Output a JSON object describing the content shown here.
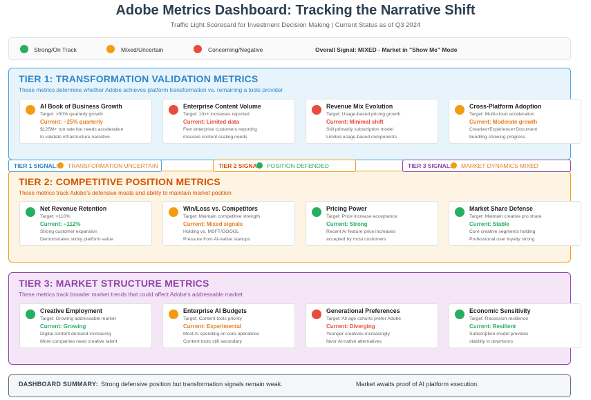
{
  "title": "Adobe Metrics Dashboard: Tracking the Narrative Shift",
  "subtitle": "Traffic Light Scorecard for Investment Decision Making | Current Status as of Q3 2024",
  "colors": {
    "green": "#27ae60",
    "amber": "#f39c12",
    "red": "#e74c3c"
  },
  "legend": {
    "green_label": "Strong/On Track",
    "amber_label": "Mixed/Uncertain",
    "red_label": "Concerning/Negative",
    "overall": "Overall Signal: MIXED - Market in \"Show Me\" Mode"
  },
  "tiers": [
    {
      "title": "TIER 1: TRANSFORMATION VALIDATION METRICS",
      "description": "These metrics determine whether Adobe achieves platform transformation vs. remaining a tools provider",
      "cards": [
        {
          "status": "amber",
          "name": "AI Book of Business Growth",
          "target": "Target: >50% quarterly growth",
          "current": "Current: ~25% quarterly",
          "note1": "$125M+ run rate but needs acceleration",
          "note2": "to validate infrastructure narrative"
        },
        {
          "status": "red",
          "name": "Enterprise Content Volume",
          "target": "Target: 10x+ increases reported",
          "current": "Current: Limited data",
          "note1": "Few enterprise customers reporting",
          "note2": "massive content scaling needs"
        },
        {
          "status": "red",
          "name": "Revenue Mix Evolution",
          "target": "Target: Usage-based pricing growth",
          "current": "Current: Minimal shift",
          "note1": "Still primarily subscription model",
          "note2": "Limited usage-based components"
        },
        {
          "status": "amber",
          "name": "Cross-Platform Adoption",
          "target": "Target: Multi-cloud acceleration",
          "current": "Current: Moderate growth",
          "note1": "Creative+Experience+Document",
          "note2": "bundling showing progress"
        }
      ]
    },
    {
      "title": "TIER 2: COMPETITIVE POSITION METRICS",
      "description": "These metrics track Adobe's defensive moats and ability to maintain market position",
      "cards": [
        {
          "status": "green",
          "name": "Net Revenue Retention",
          "target": "Target: >110%",
          "current": "Current: ~112%",
          "note1": "Strong customer expansion",
          "note2": "Demonstrates sticky platform value"
        },
        {
          "status": "amber",
          "name": "Win/Loss vs. Competitors",
          "target": "Target: Maintain competitive strength",
          "current": "Current: Mixed signals",
          "note1": "Holding vs. MSFT/GOOGL",
          "note2": "Pressure from AI-native startups"
        },
        {
          "status": "green",
          "name": "Pricing Power",
          "target": "Target: Price increase acceptance",
          "current": "Current: Strong",
          "note1": "Recent AI feature price increases",
          "note2": "accepted by most customers"
        },
        {
          "status": "green",
          "name": "Market Share Defense",
          "target": "Target: Maintain creative pro share",
          "current": "Current: Stable",
          "note1": "Core creative segments holding",
          "note2": "Professional user loyalty strong"
        }
      ]
    },
    {
      "title": "TIER 3: MARKET STRUCTURE METRICS",
      "description": "These metrics track broader market trends that could affect Adobe's addressable market",
      "cards": [
        {
          "status": "green",
          "name": "Creative Employment",
          "target": "Target: Growing addressable market",
          "current": "Current: Growing",
          "note1": "Digital content demand increasing",
          "note2": "More companies need creative talent"
        },
        {
          "status": "amber",
          "name": "Enterprise AI Budgets",
          "target": "Target: Content tools priority",
          "current": "Current: Experimental",
          "note1": "Most AI spending on core operations",
          "note2": "Content tools still secondary"
        },
        {
          "status": "red",
          "name": "Generational Preferences",
          "target": "Target: All age cohorts prefer Adobe",
          "current": "Current: Diverging",
          "note1": "Younger creatives increasingly",
          "note2": "favor AI-native alternatives"
        },
        {
          "status": "green",
          "name": "Economic Sensitivity",
          "target": "Target: Recession resilience",
          "current": "Current: Resilient",
          "note1": "Subscription model provides",
          "note2": "stability in downturns"
        }
      ]
    }
  ],
  "signals": [
    {
      "label": "TIER 1 SIGNAL:",
      "status": "amber",
      "value": "TRANSFORMATION UNCERTAIN"
    },
    {
      "label": "TIER 2 SIGNAL:",
      "status": "green",
      "value": "POSITION DEFENDED"
    },
    {
      "label": "TIER 3 SIGNAL:",
      "status": "amber",
      "value": "MARKET DYNAMICS MIXED"
    }
  ],
  "summary": {
    "label": "DASHBOARD SUMMARY:",
    "text1": "Strong defensive position but transformation signals remain weak.",
    "text2": "Market awaits proof of AI platform execution."
  }
}
